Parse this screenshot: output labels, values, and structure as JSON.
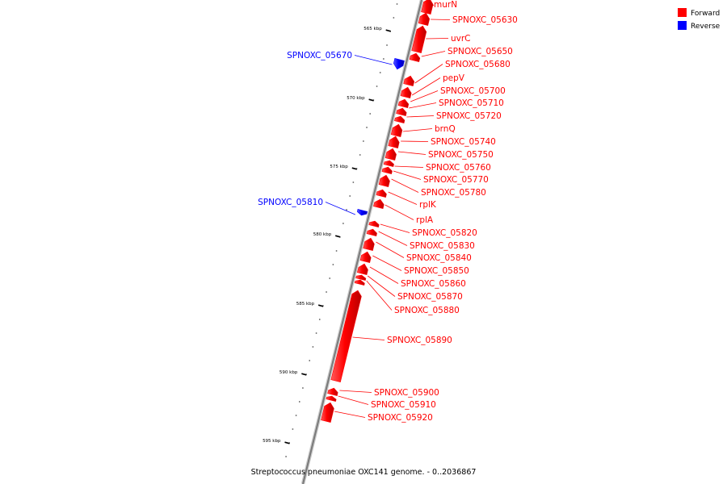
{
  "title": "Streptococcus pneumoniae OXC141 genome. - 0..2036867",
  "legend": [
    {
      "label": "Forward",
      "color": "#ff0000"
    },
    {
      "label": "Reverse",
      "color": "#0000ff"
    }
  ],
  "colors": {
    "forward": "#ff0000",
    "reverse": "#0000ff",
    "backbone": "#808080"
  },
  "ticks": [
    "565 kbp",
    "570 kbp",
    "575 kbp",
    "580 kbp",
    "585 kbp",
    "590 kbp",
    "595 kbp"
  ],
  "genes": [
    {
      "name": "murN",
      "strand": "forward"
    },
    {
      "name": "SPNOXC_05630",
      "strand": "forward"
    },
    {
      "name": "uvrC",
      "strand": "forward"
    },
    {
      "name": "SPNOXC_05650",
      "strand": "forward"
    },
    {
      "name": "SPNOXC_05670",
      "strand": "reverse"
    },
    {
      "name": "SPNOXC_05680",
      "strand": "forward"
    },
    {
      "name": "pepV",
      "strand": "forward"
    },
    {
      "name": "SPNOXC_05700",
      "strand": "forward"
    },
    {
      "name": "SPNOXC_05710",
      "strand": "forward"
    },
    {
      "name": "SPNOXC_05720",
      "strand": "forward"
    },
    {
      "name": "brnQ",
      "strand": "forward"
    },
    {
      "name": "SPNOXC_05740",
      "strand": "forward"
    },
    {
      "name": "SPNOXC_05750",
      "strand": "forward"
    },
    {
      "name": "SPNOXC_05760",
      "strand": "forward"
    },
    {
      "name": "SPNOXC_05770",
      "strand": "forward"
    },
    {
      "name": "SPNOXC_05780",
      "strand": "forward"
    },
    {
      "name": "SPNOXC_05810",
      "strand": "reverse"
    },
    {
      "name": "rplK",
      "strand": "forward"
    },
    {
      "name": "rplA",
      "strand": "forward"
    },
    {
      "name": "SPNOXC_05820",
      "strand": "forward"
    },
    {
      "name": "SPNOXC_05830",
      "strand": "forward"
    },
    {
      "name": "SPNOXC_05840",
      "strand": "forward"
    },
    {
      "name": "SPNOXC_05850",
      "strand": "forward"
    },
    {
      "name": "SPNOXC_05860",
      "strand": "forward"
    },
    {
      "name": "SPNOXC_05870",
      "strand": "forward"
    },
    {
      "name": "SPNOXC_05880",
      "strand": "forward"
    },
    {
      "name": "SPNOXC_05890",
      "strand": "forward"
    },
    {
      "name": "SPNOXC_05900",
      "strand": "forward"
    },
    {
      "name": "SPNOXC_05910",
      "strand": "forward"
    },
    {
      "name": "SPNOXC_05920",
      "strand": "forward"
    }
  ]
}
